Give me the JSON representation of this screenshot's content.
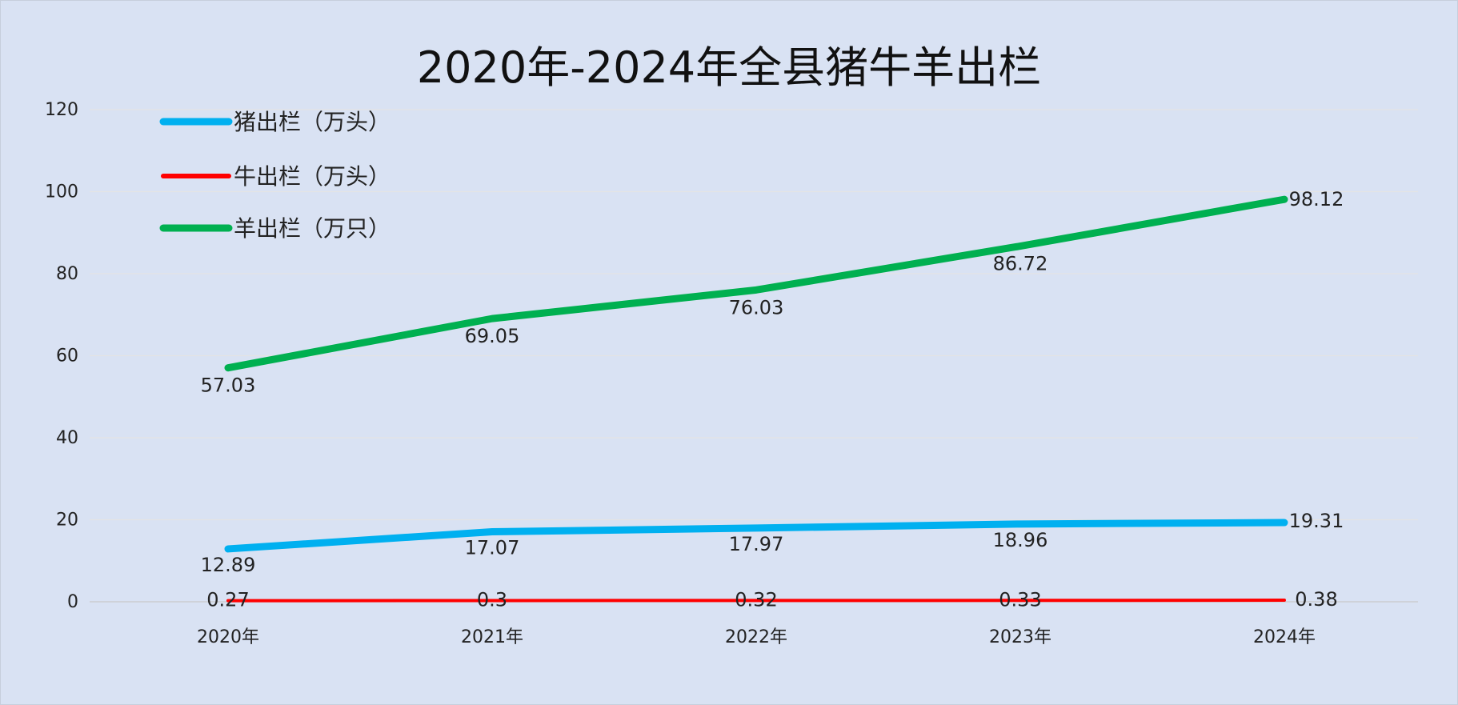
{
  "chart_data": {
    "type": "line",
    "title": "2020年-2024年全县猪牛羊出栏",
    "categories": [
      "2020年",
      "2021年",
      "2022年",
      "2023年",
      "2024年"
    ],
    "ylim": [
      0,
      120
    ],
    "yticks": [
      0,
      20,
      40,
      60,
      80,
      100,
      120
    ],
    "grid": true,
    "legend_position": "top-left",
    "series": [
      {
        "name": "猪出栏（万头）",
        "color": "#00b0f0",
        "values": [
          12.89,
          17.07,
          17.97,
          18.96,
          19.31
        ],
        "labels": [
          "12.89",
          "17.07",
          "17.97",
          "18.96",
          "19.31"
        ]
      },
      {
        "name": "牛出栏（万头）",
        "color": "#ff0000",
        "values": [
          0.27,
          0.3,
          0.32,
          0.33,
          0.38
        ],
        "labels": [
          "0.27",
          "0.3",
          "0.32",
          "0.33",
          "0.38"
        ]
      },
      {
        "name": "羊出栏（万只）",
        "color": "#00b050",
        "values": [
          57.03,
          69.05,
          76.03,
          86.72,
          98.12
        ],
        "labels": [
          "57.03",
          "69.05",
          "76.03",
          "86.72",
          "98.12"
        ]
      }
    ]
  }
}
